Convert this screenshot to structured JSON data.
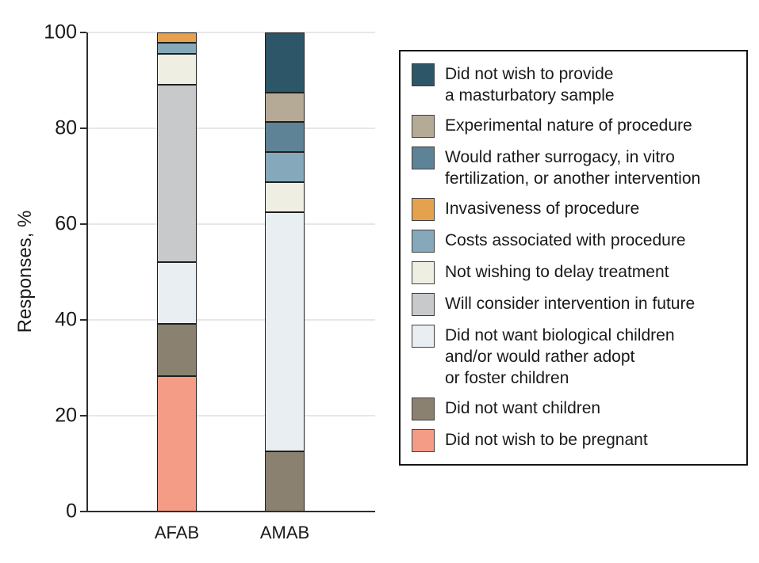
{
  "chart_data": {
    "type": "bar",
    "variant": "stacked-vertical",
    "title": "",
    "xlabel": "",
    "ylabel": "Responses, %",
    "ylim": [
      0,
      100
    ],
    "yticks": [
      0,
      20,
      40,
      60,
      80,
      100
    ],
    "grid": "horizontal",
    "legend_position": "right",
    "categories": [
      "AFAB",
      "AMAB"
    ],
    "series": [
      {
        "name": "Did not wish to be pregnant",
        "color": "#f49c86",
        "values": [
          28.3,
          0
        ]
      },
      {
        "name": "Did not want children",
        "color": "#8a8171",
        "values": [
          10.9,
          12.5
        ]
      },
      {
        "name": "Did not want biological children and/or would rather adopt or foster children",
        "color": "#e8eef2",
        "values": [
          13.0,
          50.0
        ]
      },
      {
        "name": "Will consider intervention in future",
        "color": "#c7c9cb",
        "values": [
          37.0,
          0
        ]
      },
      {
        "name": "Not wishing to delay treatment",
        "color": "#efeee3",
        "values": [
          6.5,
          6.25
        ]
      },
      {
        "name": "Costs associated with procedure",
        "color": "#85a9ba",
        "values": [
          2.2,
          6.25
        ]
      },
      {
        "name": "Invasiveness of procedure",
        "color": "#e4a24e",
        "values": [
          2.2,
          0
        ]
      },
      {
        "name": "Would rather surrogacy, in vitro fertilization, or another intervention",
        "color": "#5e8296",
        "values": [
          0,
          6.25
        ]
      },
      {
        "name": "Experimental nature of procedure",
        "color": "#b4aa96",
        "values": [
          0,
          6.25
        ]
      },
      {
        "name": "Did not wish to provide a masturbatory sample",
        "color": "#2d5768",
        "values": [
          0,
          12.5
        ]
      }
    ],
    "legend_entries": [
      {
        "series": "Did not wish to provide a masturbatory sample",
        "lines": [
          "Did not wish to provide",
          "a masturbatory sample"
        ]
      },
      {
        "series": "Experimental nature of procedure",
        "lines": [
          "Experimental nature of procedure"
        ]
      },
      {
        "series": "Would rather surrogacy, in vitro fertilization, or another intervention",
        "lines": [
          "Would rather surrogacy, in vitro",
          "fertilization, or another intervention"
        ]
      },
      {
        "series": "Invasiveness of procedure",
        "lines": [
          "Invasiveness of procedure"
        ]
      },
      {
        "series": "Costs associated with procedure",
        "lines": [
          "Costs associated with procedure"
        ]
      },
      {
        "series": "Not wishing to delay treatment",
        "lines": [
          "Not wishing to delay treatment"
        ]
      },
      {
        "series": "Will consider intervention in future",
        "lines": [
          "Will consider intervention in future"
        ]
      },
      {
        "series": "Did not want biological children and/or would rather adopt or foster children",
        "lines": [
          "Did not want biological children",
          "and/or would rather adopt",
          "or foster children"
        ]
      },
      {
        "series": "Did not want children",
        "lines": [
          "Did not want children"
        ]
      },
      {
        "series": "Did not wish to be pregnant",
        "lines": [
          "Did not wish to be pregnant"
        ]
      }
    ],
    "colors": {
      "axis": "#2e2e2e",
      "gridline": "#e7e7e7",
      "text": "#1a1a1a",
      "segment_border": "#1f1f1f",
      "background": "#ffffff"
    }
  }
}
